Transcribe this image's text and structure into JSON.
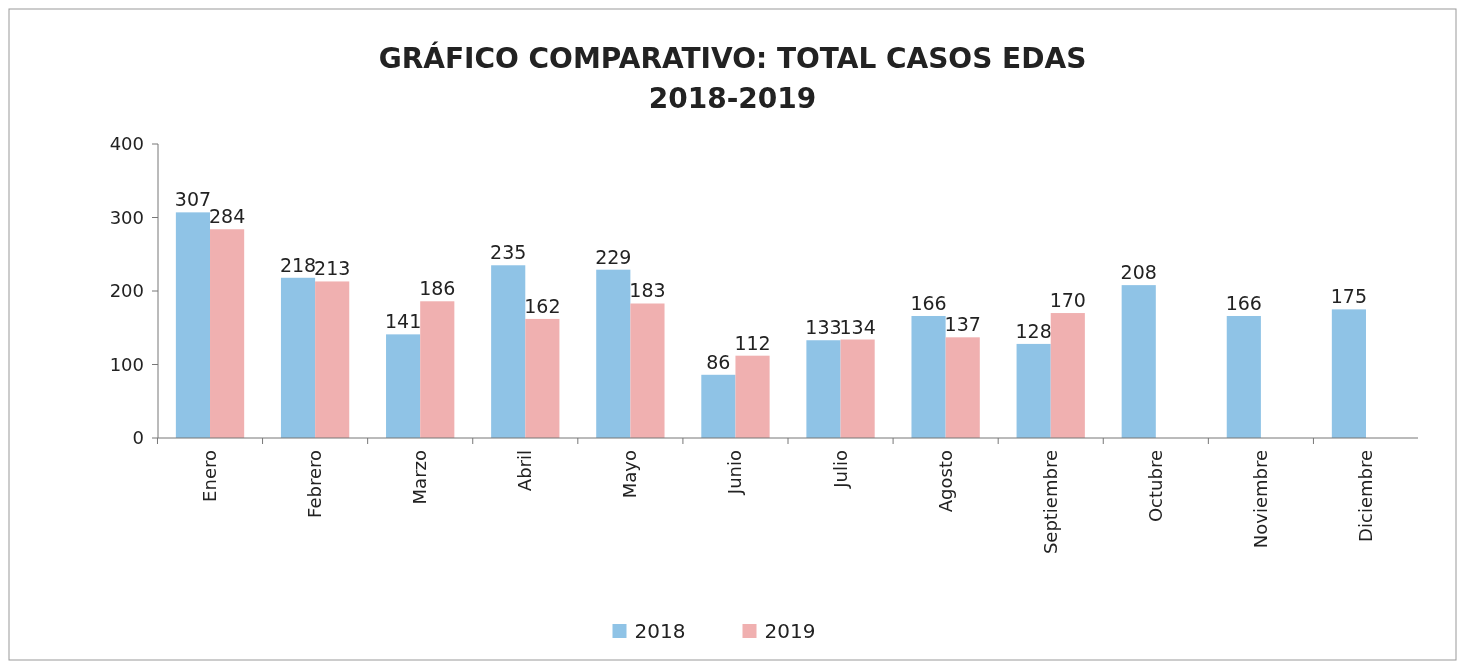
{
  "chart_data": {
    "type": "bar",
    "title": "GRÁFICO COMPARATIVO: TOTAL CASOS EDAS\n2018-2019",
    "categories": [
      "Enero",
      "Febrero",
      "Marzo",
      "Abril",
      "Mayo",
      "Junio",
      "Julio",
      "Agosto",
      "Septiembre",
      "Octubre",
      "Noviembre",
      "Diciembre"
    ],
    "series": [
      {
        "name": "2018",
        "color": "#8fc3e6",
        "values": [
          307,
          218,
          141,
          235,
          229,
          86,
          133,
          166,
          128,
          208,
          166,
          175
        ]
      },
      {
        "name": "2019",
        "color": "#f0b0b0",
        "values": [
          284,
          213,
          186,
          162,
          183,
          112,
          134,
          137,
          170,
          null,
          null,
          null
        ]
      }
    ],
    "ylim": [
      0,
      400
    ],
    "yticks": [
      0,
      100,
      200,
      300,
      400
    ],
    "data_labels": true,
    "legend": "bottom"
  }
}
